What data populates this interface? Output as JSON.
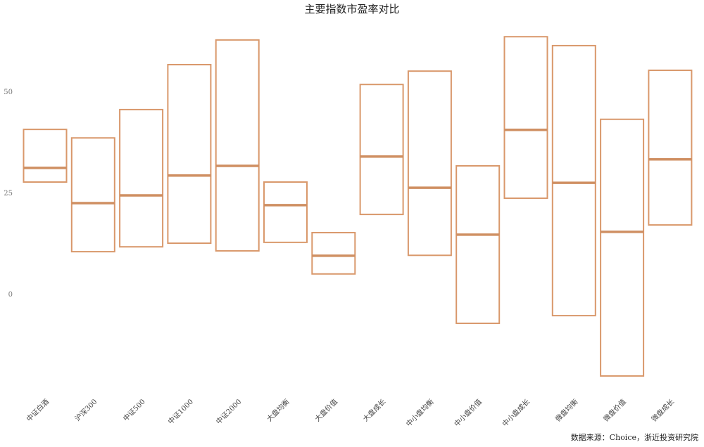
{
  "chart_data": {
    "type": "box",
    "title": "主要指数市盈率对比",
    "source": "数据来源：Choice，浙近投资研究院",
    "categories": [
      "中证白酒",
      "沪深300",
      "中证500",
      "中证1000",
      "中证2000",
      "大盘均衡",
      "大盘价值",
      "大盘成长",
      "中小盘均衡",
      "中小盘价值",
      "中小盘成长",
      "微盘均衡",
      "微盘价值",
      "微盘成长"
    ],
    "top": [
      40.6,
      38.5,
      45.5,
      56.6,
      62.7,
      27.6,
      15.1,
      51.7,
      55.0,
      31.6,
      63.5,
      61.3,
      43.1,
      55.2
    ],
    "median": [
      31.1,
      22.4,
      24.3,
      29.2,
      31.6,
      21.9,
      9.4,
      33.9,
      26.2,
      14.6,
      40.5,
      27.4,
      15.3,
      33.2
    ],
    "bottom": [
      27.6,
      10.4,
      11.6,
      12.5,
      10.6,
      12.7,
      4.9,
      19.6,
      9.5,
      -7.3,
      23.6,
      -5.4,
      -20.3,
      17.0
    ],
    "yticks": [
      0,
      25,
      50
    ],
    "ylim": [
      -25,
      68
    ],
    "grid": false,
    "color": "#d9986b",
    "median_color": "#cf8f62"
  }
}
